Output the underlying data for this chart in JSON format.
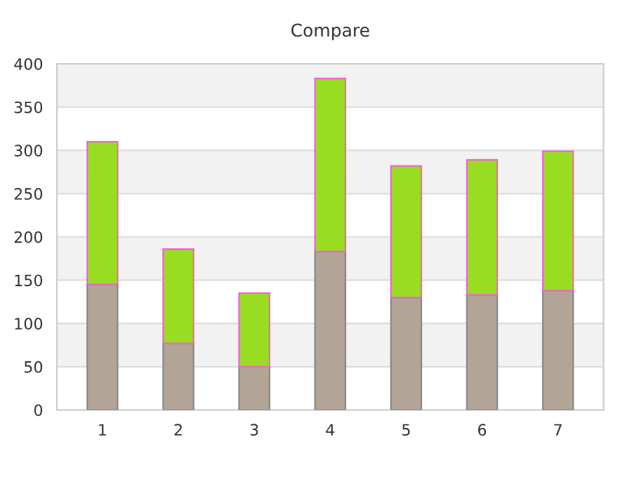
{
  "chart_data": {
    "type": "bar",
    "title": "Compare",
    "stacked": true,
    "categories": [
      "1",
      "2",
      "3",
      "4",
      "5",
      "6",
      "7"
    ],
    "series": [
      {
        "color": "#b3a596",
        "values": [
          145,
          77,
          50,
          183,
          130,
          133,
          138
        ]
      },
      {
        "color": "#99dd22",
        "values": [
          165,
          109,
          85,
          200,
          152,
          156,
          161
        ]
      }
    ],
    "ylim": [
      0,
      400
    ],
    "yticks": [
      0,
      50,
      100,
      150,
      200,
      250,
      300,
      350,
      400
    ],
    "grid": "y"
  }
}
